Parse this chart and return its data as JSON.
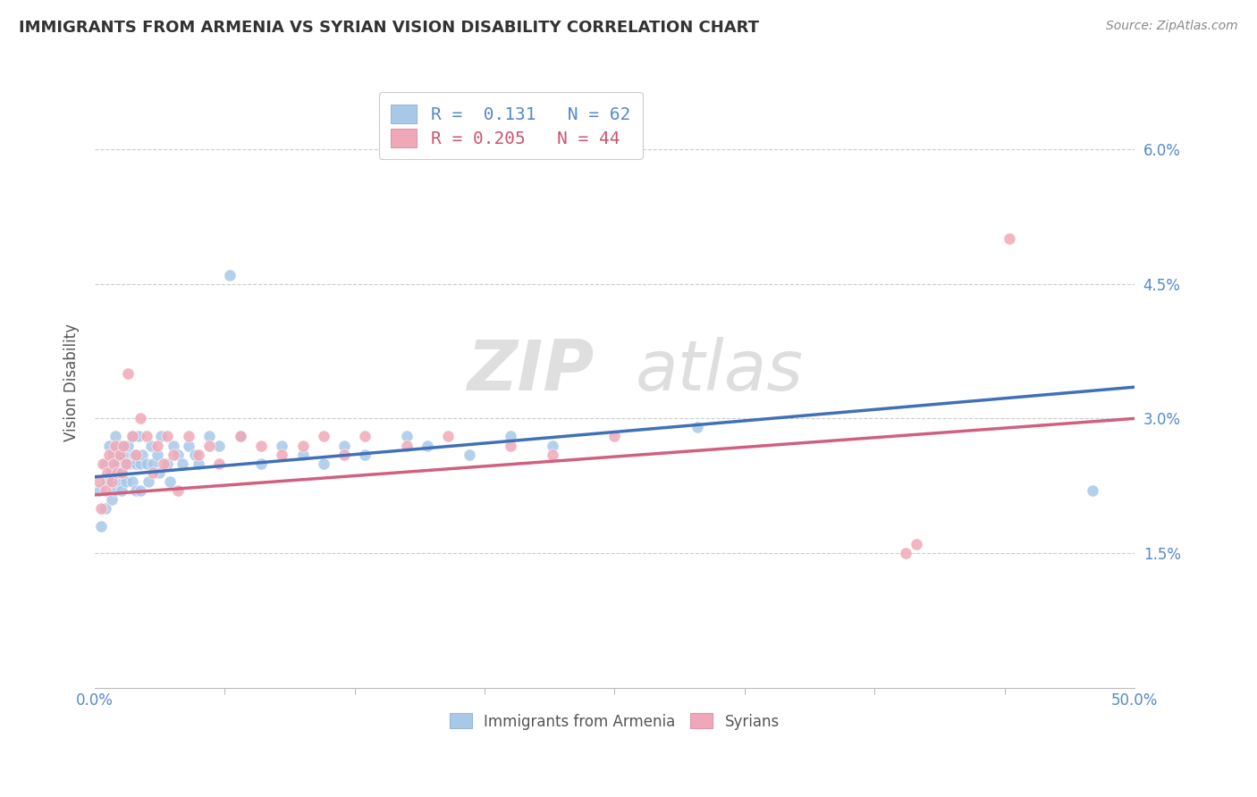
{
  "title": "IMMIGRANTS FROM ARMENIA VS SYRIAN VISION DISABILITY CORRELATION CHART",
  "source": "Source: ZipAtlas.com",
  "ylabel": "Vision Disability",
  "right_yticks": [
    "6.0%",
    "4.5%",
    "3.0%",
    "1.5%"
  ],
  "right_ytick_vals": [
    0.06,
    0.045,
    0.03,
    0.015
  ],
  "xlim": [
    0.0,
    0.5
  ],
  "ylim": [
    0.0,
    0.068
  ],
  "legend1_r": "0.131",
  "legend1_n": "62",
  "legend2_r": "0.205",
  "legend2_n": "44",
  "color_armenia": "#a8c8e8",
  "color_syria": "#f0a8b8",
  "trendline_armenia_color": "#4070b8",
  "trendline_syria_color": "#d06080",
  "watermark_zip": "ZIP",
  "watermark_atlas": "atlas",
  "armenia_x": [
    0.002,
    0.003,
    0.005,
    0.005,
    0.006,
    0.007,
    0.008,
    0.008,
    0.009,
    0.01,
    0.01,
    0.011,
    0.012,
    0.012,
    0.013,
    0.013,
    0.014,
    0.015,
    0.015,
    0.016,
    0.017,
    0.018,
    0.018,
    0.019,
    0.02,
    0.02,
    0.021,
    0.022,
    0.022,
    0.023,
    0.025,
    0.026,
    0.027,
    0.028,
    0.03,
    0.031,
    0.032,
    0.035,
    0.036,
    0.038,
    0.04,
    0.042,
    0.045,
    0.048,
    0.05,
    0.055,
    0.06,
    0.065,
    0.07,
    0.08,
    0.09,
    0.1,
    0.11,
    0.12,
    0.13,
    0.15,
    0.16,
    0.18,
    0.2,
    0.22,
    0.29,
    0.48
  ],
  "armenia_y": [
    0.022,
    0.018,
    0.025,
    0.02,
    0.023,
    0.027,
    0.024,
    0.021,
    0.026,
    0.028,
    0.022,
    0.025,
    0.023,
    0.027,
    0.024,
    0.022,
    0.026,
    0.025,
    0.023,
    0.027,
    0.025,
    0.028,
    0.023,
    0.026,
    0.025,
    0.022,
    0.028,
    0.025,
    0.022,
    0.026,
    0.025,
    0.023,
    0.027,
    0.025,
    0.026,
    0.024,
    0.028,
    0.025,
    0.023,
    0.027,
    0.026,
    0.025,
    0.027,
    0.026,
    0.025,
    0.028,
    0.027,
    0.046,
    0.028,
    0.025,
    0.027,
    0.026,
    0.025,
    0.027,
    0.026,
    0.028,
    0.027,
    0.026,
    0.028,
    0.027,
    0.029,
    0.022
  ],
  "syria_x": [
    0.002,
    0.003,
    0.004,
    0.005,
    0.006,
    0.007,
    0.008,
    0.009,
    0.01,
    0.011,
    0.012,
    0.013,
    0.014,
    0.015,
    0.016,
    0.018,
    0.02,
    0.022,
    0.025,
    0.028,
    0.03,
    0.033,
    0.035,
    0.038,
    0.04,
    0.045,
    0.05,
    0.055,
    0.06,
    0.07,
    0.08,
    0.09,
    0.1,
    0.11,
    0.12,
    0.13,
    0.15,
    0.17,
    0.2,
    0.22,
    0.25,
    0.39,
    0.395,
    0.44
  ],
  "syria_y": [
    0.023,
    0.02,
    0.025,
    0.022,
    0.024,
    0.026,
    0.023,
    0.025,
    0.027,
    0.024,
    0.026,
    0.024,
    0.027,
    0.025,
    0.035,
    0.028,
    0.026,
    0.03,
    0.028,
    0.024,
    0.027,
    0.025,
    0.028,
    0.026,
    0.022,
    0.028,
    0.026,
    0.027,
    0.025,
    0.028,
    0.027,
    0.026,
    0.027,
    0.028,
    0.026,
    0.028,
    0.027,
    0.028,
    0.027,
    0.026,
    0.028,
    0.015,
    0.016,
    0.05
  ],
  "x_minor_ticks": [
    0.0625,
    0.125,
    0.1875,
    0.25,
    0.3125,
    0.375,
    0.4375
  ]
}
